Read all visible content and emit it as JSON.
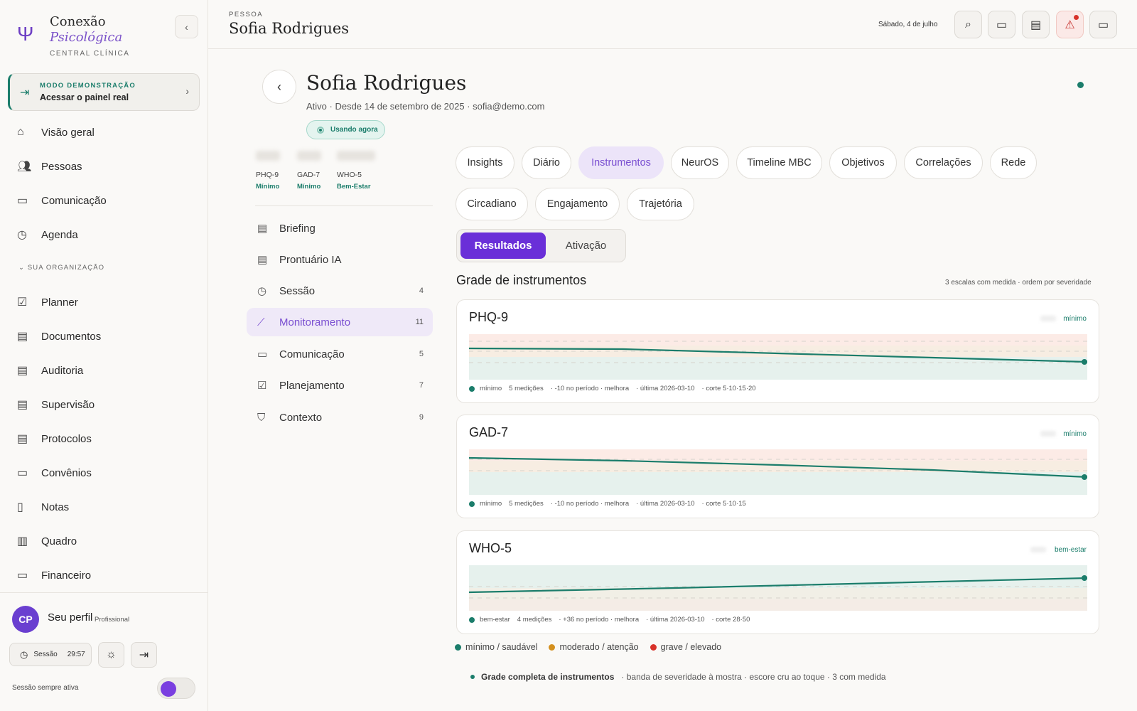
{
  "brand": {
    "line1": "Conexão",
    "line2": "Psicológica",
    "line3": "CENTRAL CLÍNICA"
  },
  "demo": {
    "label": "MODO DEMONSTRAÇÃO",
    "action": "Acessar o painel real"
  },
  "nav": {
    "items": [
      "Visão geral",
      "Pessoas",
      "Comunicação",
      "Agenda"
    ],
    "org_heading": "SUA ORGANIZAÇÃO",
    "org_items": [
      "Planner",
      "Documentos",
      "Auditoria",
      "Supervisão",
      "Protocolos",
      "Convênios",
      "Notas",
      "Quadro",
      "Financeiro"
    ]
  },
  "profile": {
    "initials": "CP",
    "name": "Seu perfil",
    "role": "Profissional",
    "session_label": "Sessão",
    "session_time": "29:57",
    "always_on": "Sessão sempre ativa"
  },
  "topbar": {
    "crumb": "PESSOA",
    "title": "Sofia Rodrigues",
    "date": "Sábado, 4 de julho"
  },
  "patient": {
    "name": "Sofia Rodrigues",
    "meta": "Ativo · Desde 14 de setembro de 2025 · sofia@demo.com",
    "status": "Usando agora"
  },
  "scores": [
    {
      "label": "PHQ-9",
      "severity": "Mínimo"
    },
    {
      "label": "GAD-7",
      "severity": "Mínimo"
    },
    {
      "label": "WHO-5",
      "severity": "Bem-Estar"
    }
  ],
  "sections": [
    {
      "label": "Briefing",
      "count": ""
    },
    {
      "label": "Prontuário IA",
      "count": ""
    },
    {
      "label": "Sessão",
      "count": "4"
    },
    {
      "label": "Monitoramento",
      "count": "11"
    },
    {
      "label": "Comunicação",
      "count": "5"
    },
    {
      "label": "Planejamento",
      "count": "7"
    },
    {
      "label": "Contexto",
      "count": "9"
    }
  ],
  "tabs": [
    "Insights",
    "Diário",
    "Instrumentos",
    "NeurOS",
    "Timeline MBC",
    "Objetivos",
    "Correlações",
    "Rede",
    "Circadiano",
    "Engajamento",
    "Trajetória"
  ],
  "segment": {
    "a": "Resultados",
    "b": "Ativação"
  },
  "grid": {
    "title": "Grade de instrumentos",
    "subtitle": "3 escalas com medida · ordem por severidade"
  },
  "cards": [
    {
      "name": "PHQ-9",
      "badge": "mínimo",
      "foot": [
        "mínimo",
        "5 medições",
        "· -10 no período · melhora",
        "· última 2026-03-10",
        "· corte 5·10·15·20"
      ]
    },
    {
      "name": "GAD-7",
      "badge": "mínimo",
      "foot": [
        "mínimo",
        "5 medições",
        "· -10 no período · melhora",
        "· última 2026-03-10",
        "· corte 5·10·15"
      ]
    },
    {
      "name": "WHO-5",
      "badge": "bem-estar",
      "foot": [
        "bem-estar",
        "4 medições",
        "· +36 no período · melhora",
        "· última 2026-03-10",
        "· corte 28·50"
      ]
    }
  ],
  "legend": [
    "mínimo / saudável",
    "moderado / atenção",
    "grave / elevado"
  ],
  "colors": {
    "accent": "#6a2fd8",
    "teal": "#1b7d6b",
    "amber": "#d4901e",
    "red": "#d8322a"
  },
  "footnote": {
    "title": "Grade completa de instrumentos",
    "text": "· banda de severidade à mostra · escore cru ao toque · 3 com medida"
  }
}
